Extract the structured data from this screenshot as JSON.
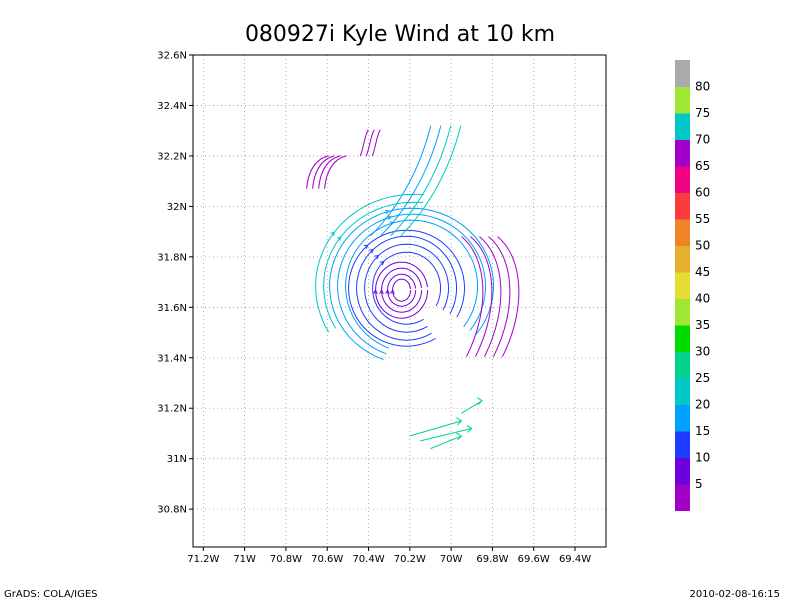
{
  "chart_data": {
    "type": "streamline",
    "title": "080927i Kyle Wind at 10 km",
    "xlim": [
      -71.25,
      -69.25
    ],
    "ylim": [
      30.65,
      32.6
    ],
    "x_ticks": [
      {
        "value": -71.2,
        "label": "71.2W"
      },
      {
        "value": -71.0,
        "label": "71W"
      },
      {
        "value": -70.8,
        "label": "70.8W"
      },
      {
        "value": -70.6,
        "label": "70.6W"
      },
      {
        "value": -70.4,
        "label": "70.4W"
      },
      {
        "value": -70.2,
        "label": "70.2W"
      },
      {
        "value": -70.0,
        "label": "70W"
      },
      {
        "value": -69.8,
        "label": "69.8W"
      },
      {
        "value": -69.6,
        "label": "69.6W"
      },
      {
        "value": -69.4,
        "label": "69.4W"
      }
    ],
    "y_ticks": [
      {
        "value": 30.8,
        "label": "30.8N"
      },
      {
        "value": 31.0,
        "label": "31N"
      },
      {
        "value": 31.2,
        "label": "31.2N"
      },
      {
        "value": 31.4,
        "label": "31.4N"
      },
      {
        "value": 31.6,
        "label": "31.6N"
      },
      {
        "value": 31.8,
        "label": "31.8N"
      },
      {
        "value": 32.0,
        "label": "32N"
      },
      {
        "value": 32.2,
        "label": "32.2N"
      },
      {
        "value": 32.4,
        "label": "32.4N"
      },
      {
        "value": 32.6,
        "label": "32.6N"
      }
    ],
    "grid": true,
    "vortex_center": {
      "lon": -70.24,
      "lat": 31.66
    },
    "colorbar": {
      "labels": [
        "5",
        "10",
        "15",
        "20",
        "25",
        "30",
        "35",
        "40",
        "45",
        "50",
        "55",
        "60",
        "65",
        "70",
        "75",
        "80"
      ],
      "colors": [
        "#a000c8",
        "#6e00dc",
        "#1e3cff",
        "#00a0ff",
        "#00c8c8",
        "#00d28c",
        "#00dc00",
        "#a0e632",
        "#e6dc32",
        "#e6af2d",
        "#f08228",
        "#fa3c3c",
        "#f00082",
        "#a000c8",
        "#00c8c8",
        "#a0e632",
        "#aaaaaa"
      ]
    },
    "footer_left": "GrADS: COLA/IGES",
    "footer_right": "2010-02-08-16:15"
  }
}
